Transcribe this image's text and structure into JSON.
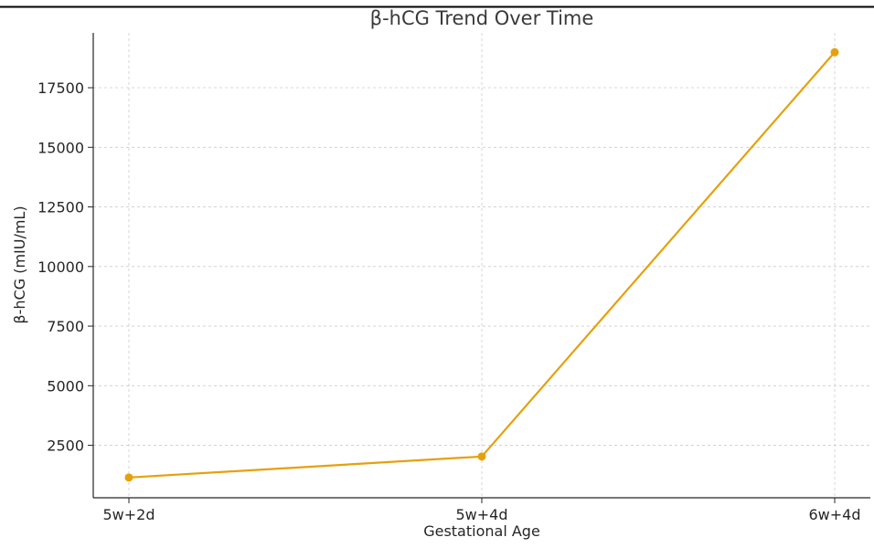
{
  "chart_data": {
    "type": "line",
    "title": "β-hCG Trend Over Time",
    "xlabel": "Gestational Age",
    "ylabel": "β-hCG (mIU/mL)",
    "categories": [
      "5w+2d",
      "5w+4d",
      "6w+4d"
    ],
    "series": [
      {
        "values": [
          1150,
          2030,
          18990
        ],
        "color": "#e5a10d"
      }
    ],
    "yticks": [
      2500,
      5000,
      7500,
      10000,
      12500,
      15000,
      17500
    ],
    "ytick_labels": [
      "2500",
      "5000",
      "7500",
      "10000",
      "12500",
      "15000",
      "17500"
    ],
    "ylim": [
      300,
      19800
    ],
    "grid": true,
    "legend": "none"
  }
}
